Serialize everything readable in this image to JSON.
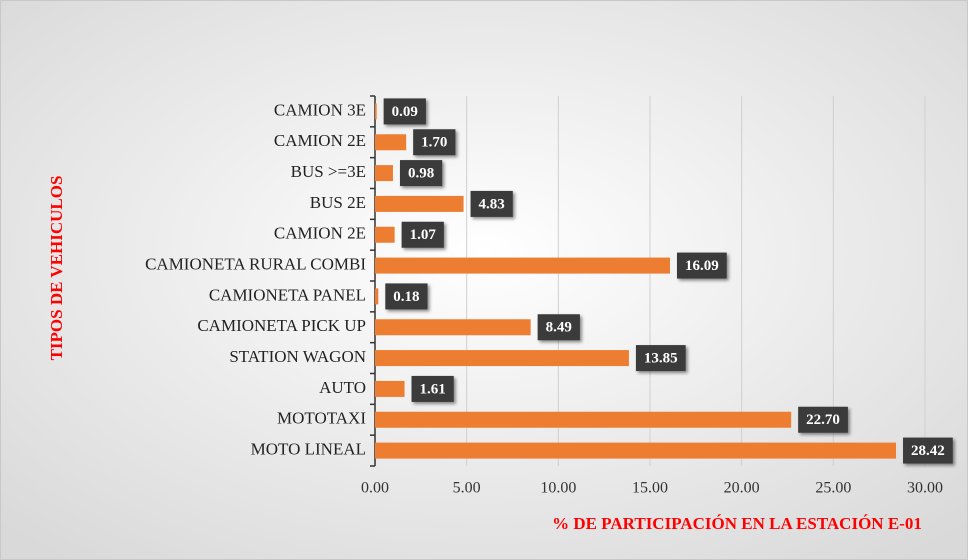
{
  "chart_data": {
    "type": "bar",
    "orientation": "horizontal",
    "x_label": "% DE PARTICIPACIÓN EN LA ESTACIÓN E-01",
    "y_label": "TIPOS DE VEHICULOS",
    "categories": [
      "CAMION 3E",
      "CAMION 2E",
      "BUS >=3E",
      "BUS 2E",
      "CAMION 2E",
      "CAMIONETA RURAL COMBI",
      "CAMIONETA PANEL",
      "CAMIONETA PICK UP",
      "STATION WAGON",
      "AUTO",
      "MOTOTAXI",
      "MOTO LINEAL"
    ],
    "values": [
      0.09,
      1.7,
      0.98,
      4.83,
      1.07,
      16.09,
      0.18,
      8.49,
      13.85,
      1.61,
      22.7,
      28.42
    ],
    "value_labels": [
      "0.09",
      "1.70",
      "0.98",
      "4.83",
      "1.07",
      "16.09",
      "0.18",
      "8.49",
      "13.85",
      "1.61",
      "22.70",
      "28.42"
    ],
    "color": "#ed7d31",
    "xlim": [
      0,
      30
    ],
    "xticks": [
      {
        "value": 0,
        "label": "0.00"
      },
      {
        "value": 5,
        "label": "5.00"
      },
      {
        "value": 10,
        "label": "10.00"
      },
      {
        "value": 15,
        "label": "15.00"
      },
      {
        "value": 20,
        "label": "20.00"
      },
      {
        "value": 25,
        "label": "25.00"
      },
      {
        "value": 30,
        "label": "30.00"
      }
    ],
    "grid": true
  }
}
